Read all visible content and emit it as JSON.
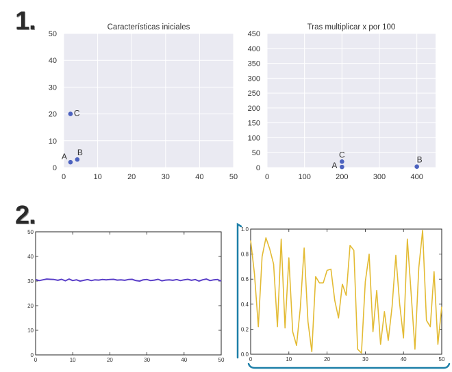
{
  "labels": {
    "section_1": "1.",
    "section_2": "2."
  },
  "colors": {
    "scatter_point": "#4c62bf",
    "line_blue": "#5a3fc8",
    "line_gold": "#e3bb34",
    "bracket": "#1d7fa8",
    "seaborn_bg": "#eaeaf2"
  },
  "chart_data": [
    {
      "type": "scatter",
      "title": "Características iniciales",
      "xlim": [
        0,
        50
      ],
      "ylim": [
        0,
        50
      ],
      "xticks": [
        0,
        10,
        20,
        30,
        40,
        50
      ],
      "yticks": [
        0,
        10,
        20,
        30,
        40,
        50
      ],
      "grid": true,
      "points": [
        {
          "label": "A",
          "x": 2,
          "y": 2
        },
        {
          "label": "B",
          "x": 4,
          "y": 3
        },
        {
          "label": "C",
          "x": 2,
          "y": 20
        }
      ]
    },
    {
      "type": "scatter",
      "title": "Tras multiplicar x por 100",
      "xlim": [
        0,
        450
      ],
      "ylim": [
        0,
        450
      ],
      "xticks": [
        0,
        100,
        200,
        300,
        400
      ],
      "yticks": [
        0,
        50,
        100,
        150,
        200,
        250,
        300,
        350,
        400,
        450
      ],
      "grid": true,
      "points": [
        {
          "label": "A",
          "x": 200,
          "y": 2
        },
        {
          "label": "B",
          "x": 400,
          "y": 3
        },
        {
          "label": "C",
          "x": 200,
          "y": 20
        }
      ]
    },
    {
      "type": "line",
      "xlim": [
        0,
        50
      ],
      "ylim": [
        0,
        50
      ],
      "xticks": [
        0,
        10,
        20,
        30,
        40,
        50
      ],
      "yticks": [
        0,
        10,
        20,
        30,
        40,
        50
      ],
      "grid": false,
      "x": [
        0,
        1,
        2,
        3,
        4,
        5,
        6,
        7,
        8,
        9,
        10,
        11,
        12,
        13,
        14,
        15,
        16,
        17,
        18,
        19,
        20,
        21,
        22,
        23,
        24,
        25,
        26,
        27,
        28,
        29,
        30,
        31,
        32,
        33,
        34,
        35,
        36,
        37,
        38,
        39,
        40,
        41,
        42,
        43,
        44,
        45,
        46,
        47,
        48,
        49,
        50
      ],
      "y": [
        30.6,
        30.2,
        30.5,
        30.8,
        30.7,
        30.6,
        30.3,
        30.7,
        30.1,
        30.8,
        30.2,
        30.5,
        30.0,
        30.3,
        30.6,
        30.2,
        30.5,
        30.4,
        30.6,
        30.5,
        30.6,
        30.7,
        30.4,
        30.5,
        30.3,
        30.6,
        30.7,
        30.2,
        30.0,
        30.5,
        30.6,
        30.2,
        30.4,
        30.7,
        30.1,
        30.4,
        30.5,
        30.3,
        30.6,
        30.2,
        30.5,
        30.7,
        30.3,
        30.6,
        30.0,
        30.5,
        30.8,
        30.2,
        30.5,
        30.6,
        30.0
      ]
    },
    {
      "type": "line",
      "xlim": [
        0,
        50
      ],
      "ylim": [
        0.0,
        1.0
      ],
      "xticks": [
        0,
        10,
        20,
        30,
        40,
        50
      ],
      "yticks": [
        0.0,
        0.2,
        0.4,
        0.6,
        0.8,
        1.0
      ],
      "grid": false,
      "x": [
        0,
        1,
        2,
        3,
        4,
        5,
        6,
        7,
        8,
        9,
        10,
        11,
        12,
        13,
        14,
        15,
        16,
        17,
        18,
        19,
        20,
        21,
        22,
        23,
        24,
        25,
        26,
        27,
        28,
        29,
        30,
        31,
        32,
        33,
        34,
        35,
        36,
        37,
        38,
        39,
        40,
        41,
        42,
        43,
        44,
        45,
        46,
        47,
        48,
        49,
        50
      ],
      "y": [
        0.91,
        0.64,
        0.22,
        0.78,
        0.93,
        0.84,
        0.72,
        0.22,
        0.92,
        0.21,
        0.77,
        0.18,
        0.07,
        0.37,
        0.85,
        0.26,
        0.02,
        0.62,
        0.57,
        0.57,
        0.67,
        0.68,
        0.43,
        0.29,
        0.56,
        0.47,
        0.87,
        0.83,
        0.04,
        0.01,
        0.58,
        0.8,
        0.18,
        0.51,
        0.08,
        0.34,
        0.11,
        0.38,
        0.79,
        0.4,
        0.13,
        0.92,
        0.48,
        0.04,
        0.69,
        0.99,
        0.27,
        0.22,
        0.66,
        0.08,
        0.38
      ]
    }
  ]
}
